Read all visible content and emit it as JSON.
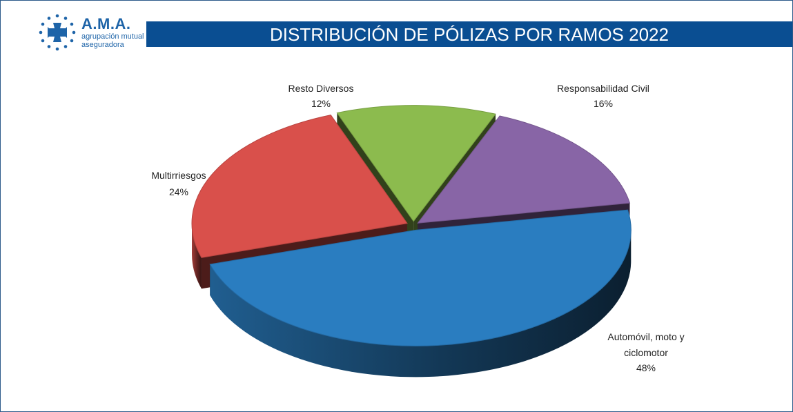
{
  "header": {
    "logo_name": "A.M.A.",
    "logo_line1": "agrupación mutual",
    "logo_line2": "aseguradora",
    "title": "DISTRIBUCIÓN DE PÓLIZAS POR RAMOS 2022"
  },
  "colors": {
    "title_bar": "#0a4e92",
    "brand": "#1e64a8"
  },
  "chart_data": {
    "type": "pie",
    "title": "DISTRIBUCIÓN DE PÓLIZAS POR RAMOS 2022",
    "three_d": true,
    "exploded": true,
    "slices": [
      {
        "label": "Automóvil, moto y ciclomotor",
        "percent_label": "48%",
        "value": 48,
        "color": "#2a7dc0"
      },
      {
        "label": "Multirriesgos",
        "percent_label": "24%",
        "value": 24,
        "color": "#d9504b"
      },
      {
        "label": "Resto Diversos",
        "percent_label": "12%",
        "value": 12,
        "color": "#8cbb4e"
      },
      {
        "label": "Responsabilidad Civil",
        "percent_label": "16%",
        "value": 16,
        "color": "#8865a6"
      }
    ]
  }
}
